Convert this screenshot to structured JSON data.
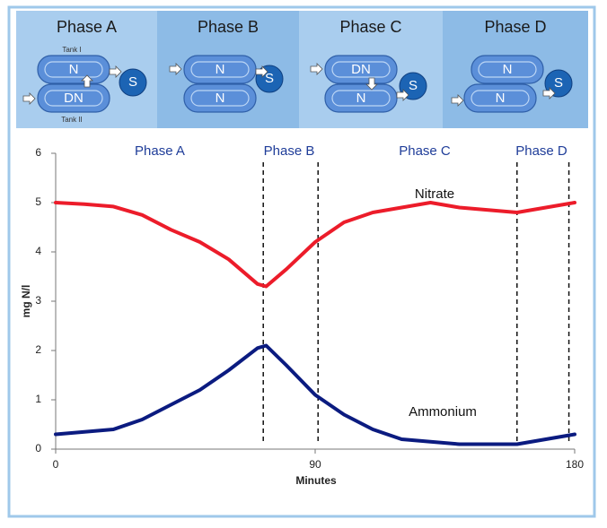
{
  "diagram": {
    "phases": [
      {
        "title": "Phase A",
        "top": "N",
        "bottom": "DN",
        "top_caption": "Tank I",
        "bottom_caption": "Tank II",
        "settler": "S"
      },
      {
        "title": "Phase B",
        "top": "N",
        "bottom": "N",
        "settler": "S"
      },
      {
        "title": "Phase C",
        "top": "DN",
        "bottom": "N",
        "settler": "S"
      },
      {
        "title": "Phase D",
        "top": "N",
        "bottom": "N",
        "settler": "S"
      }
    ]
  },
  "chart_data": {
    "type": "line",
    "x_label": "Minutes",
    "y_label": "mg N/l",
    "x": [
      0,
      10,
      20,
      30,
      40,
      50,
      60,
      70,
      73,
      80,
      90,
      100,
      110,
      120,
      130,
      140,
      150,
      160,
      170,
      180
    ],
    "series": [
      {
        "name": "Nitrate",
        "color": "#ec1c2a",
        "values": [
          5.0,
          4.97,
          4.92,
          4.75,
          4.45,
          4.2,
          3.85,
          3.35,
          3.3,
          3.65,
          4.2,
          4.6,
          4.8,
          4.9,
          5.0,
          4.9,
          4.85,
          4.8,
          4.9,
          5.0
        ]
      },
      {
        "name": "Ammonium",
        "color": "#0b1b80",
        "values": [
          0.3,
          0.35,
          0.4,
          0.6,
          0.9,
          1.2,
          1.6,
          2.05,
          2.1,
          1.7,
          1.1,
          0.7,
          0.4,
          0.2,
          0.15,
          0.1,
          0.1,
          0.1,
          0.2,
          0.3
        ]
      }
    ],
    "phase_labels": [
      "Phase A",
      "Phase B",
      "Phase C",
      "Phase D"
    ],
    "phase_boundaries": [
      72,
      91,
      160,
      178
    ],
    "xlim": [
      0,
      180
    ],
    "xticks": [
      0,
      90,
      180
    ],
    "ylim": [
      0,
      6
    ],
    "yticks": [
      0,
      1,
      2,
      3,
      4,
      5,
      6
    ]
  }
}
